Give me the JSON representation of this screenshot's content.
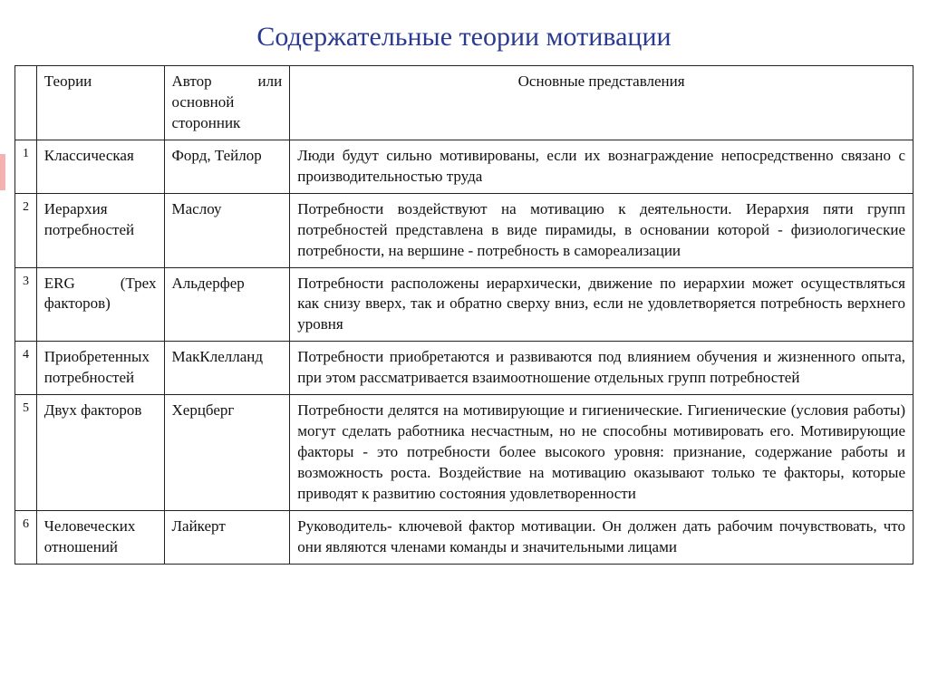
{
  "title": "Содержательные теории мотивации",
  "title_color": "#2a3a8f",
  "title_fontsize": 30,
  "body_fontsize": 17,
  "border_color": "#222222",
  "background_color": "#ffffff",
  "columns": {
    "num": "",
    "theory": "Теории",
    "author": "Автор или основной сторонник",
    "desc": "Основные представления"
  },
  "column_widths_pct": {
    "num": 2.4,
    "theory": 14.2,
    "author": 14.0,
    "desc": 69.4
  },
  "rows": [
    {
      "n": "1",
      "theory": "Классическая",
      "author": "Форд, Тейлор",
      "desc": "Люди будут сильно мотивированы, если их вознаграждение непосредственно связано с производительностью труда"
    },
    {
      "n": "2",
      "theory": "Иерархия потребностей",
      "author": "Маслоу",
      "desc": "Потребности воздействуют на мотивацию к деятельности. Иерархия пяти групп потребностей представлена в виде пирамиды, в основании которой - физиологические потребности, на вершине - потребность в самореализации"
    },
    {
      "n": "3",
      "theory": "ERG (Трех факторов)",
      "author": "Альдерфер",
      "desc": "Потребности расположены иерархически, движение по иерархии может осуществляться как снизу вверх, так и обратно сверху вниз, если не удовлетворяется потребность верхнего уровня"
    },
    {
      "n": "4",
      "theory": "Приобретенных потреб­ностей",
      "author": "МакКлелланд",
      "desc": "Потребности приобретаются и развиваются под влиянием обучения и жизненного опыта, при этом рассматривается взаимоотношение отдельных групп потребностей"
    },
    {
      "n": "5",
      "theory": "Двух факторов",
      "author": "Херцберг",
      "desc": "Потребности делятся на мотивирующие и гигиенические. Гигиенические (условия работы) могут сделать работника несчастным, но не способны мотивировать его. Мотивирующие факторы - это потребности более высокого уровня: признание, содержание работы и возможность роста. Воздействие на мотивацию оказывают только те факторы, которые приводят к развитию состояния удовлетворенности"
    },
    {
      "n": "6",
      "theory": "Человеческих отношений",
      "author": "Лайкерт",
      "desc": "Руководитель- ключевой фактор мотивации. Он должен дать рабочим почувствовать, что они являются членами команды и значительными лицами"
    }
  ]
}
